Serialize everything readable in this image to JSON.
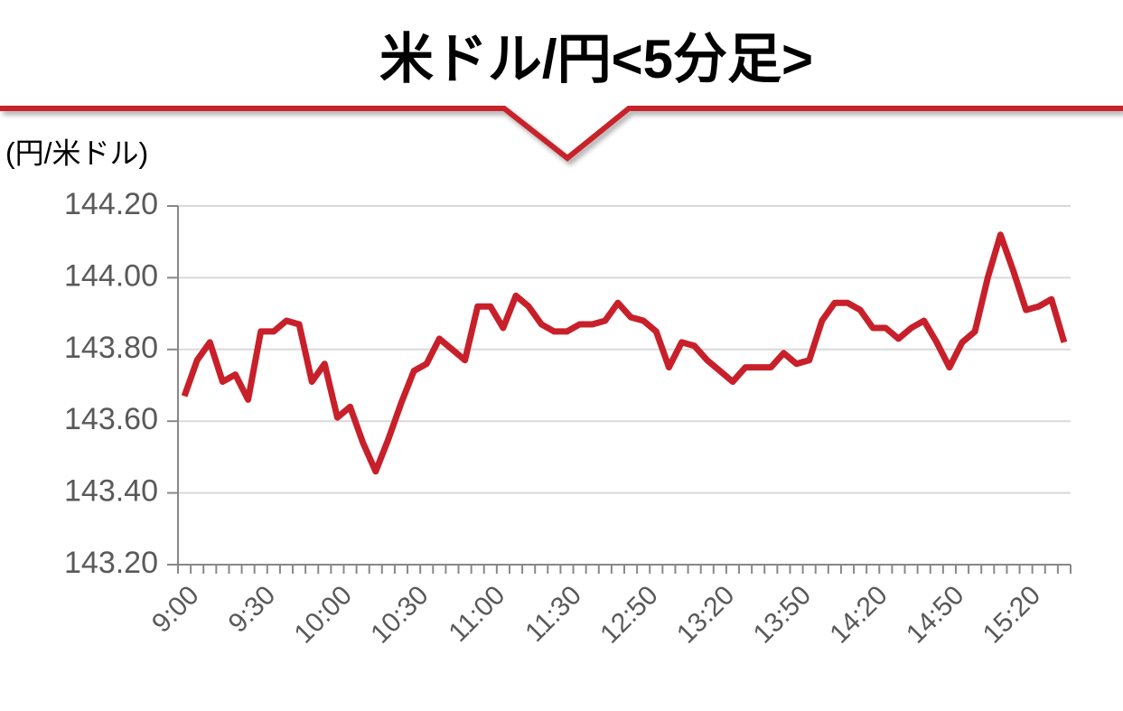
{
  "chart_data": {
    "type": "line",
    "title": "米ドル/円<5分足>",
    "y_axis_label": "(円/米ドル)",
    "categories": [
      "9:00",
      null,
      null,
      null,
      null,
      null,
      "9:30",
      null,
      null,
      null,
      null,
      null,
      "10:00",
      null,
      null,
      null,
      null,
      null,
      "10:30",
      null,
      null,
      null,
      null,
      null,
      "11:00",
      null,
      null,
      null,
      null,
      null,
      "11:30",
      null,
      null,
      null,
      null,
      null,
      "12:50",
      null,
      null,
      null,
      null,
      null,
      "13:20",
      null,
      null,
      null,
      null,
      null,
      "13:50",
      null,
      null,
      null,
      null,
      null,
      "14:20",
      null,
      null,
      null,
      null,
      null,
      "14:50",
      null,
      null,
      null,
      null,
      null,
      "15:20",
      null,
      null,
      null
    ],
    "values": [
      143.67,
      143.77,
      143.82,
      143.71,
      143.73,
      143.66,
      143.85,
      143.85,
      143.88,
      143.87,
      143.71,
      143.76,
      143.61,
      143.64,
      143.54,
      143.46,
      143.55,
      143.65,
      143.74,
      143.76,
      143.83,
      143.8,
      143.77,
      143.92,
      143.92,
      143.86,
      143.95,
      143.92,
      143.87,
      143.85,
      143.85,
      143.87,
      143.87,
      143.88,
      143.93,
      143.89,
      143.88,
      143.85,
      143.75,
      143.82,
      143.81,
      143.77,
      143.74,
      143.71,
      143.75,
      143.75,
      143.75,
      143.79,
      143.76,
      143.77,
      143.88,
      143.93,
      143.93,
      143.91,
      143.86,
      143.86,
      143.83,
      143.86,
      143.88,
      143.82,
      143.75,
      143.82,
      143.85,
      144.0,
      144.12,
      144.02,
      143.91,
      143.92,
      143.94,
      143.82
    ],
    "color": "#c8202a",
    "ylim": [
      143.2,
      144.2
    ],
    "yticks": [
      {
        "value": 143.2,
        "label": "143.20"
      },
      {
        "value": 143.4,
        "label": "143.40"
      },
      {
        "value": 143.6,
        "label": "143.60"
      },
      {
        "value": 143.8,
        "label": "143.80"
      },
      {
        "value": 144.0,
        "label": "144.00"
      },
      {
        "value": 144.2,
        "label": "144.20"
      }
    ],
    "grid": true
  }
}
